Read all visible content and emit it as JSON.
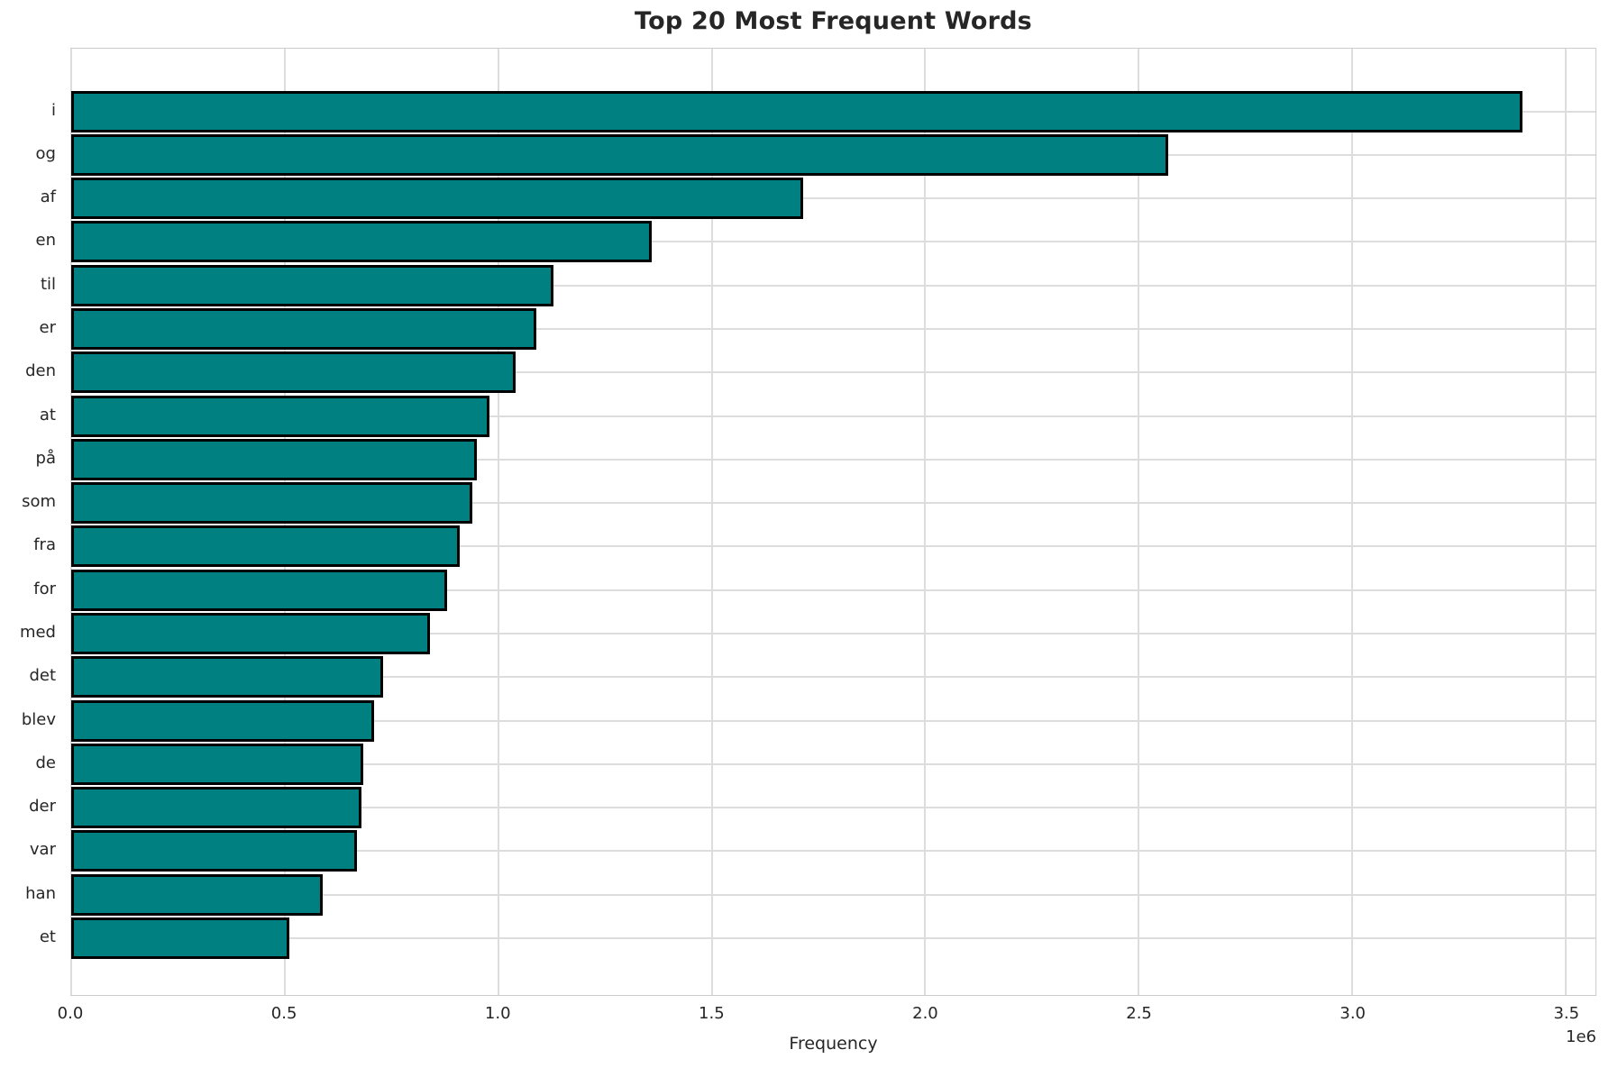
{
  "chart_data": {
    "type": "bar",
    "orientation": "horizontal",
    "title": "Top 20 Most Frequent Words",
    "xlabel": "Frequency",
    "ylabel": "",
    "categories": [
      "i",
      "og",
      "af",
      "en",
      "til",
      "er",
      "den",
      "at",
      "på",
      "som",
      "fra",
      "for",
      "med",
      "det",
      "blev",
      "de",
      "der",
      "var",
      "han",
      "et"
    ],
    "values": [
      3400000,
      2570000,
      1715000,
      1360000,
      1130000,
      1090000,
      1040000,
      980000,
      950000,
      940000,
      910000,
      880000,
      840000,
      730000,
      710000,
      685000,
      680000,
      670000,
      590000,
      510000
    ],
    "xlim": [
      0,
      3570000
    ],
    "xticks": [
      0,
      500000,
      1000000,
      1500000,
      2000000,
      2500000,
      3000000,
      3500000
    ],
    "xtick_labels": [
      "0.0",
      "0.5",
      "1.0",
      "1.5",
      "2.0",
      "2.5",
      "3.0",
      "3.5"
    ],
    "offset_label": "1e6",
    "legend": "none",
    "grid": "both",
    "colors": {
      "bar_fill": "#008080",
      "bar_edge": "#000000",
      "grid": "#dddddd",
      "spine": "#cccccc",
      "text": "#262626",
      "background": "#ffffff"
    }
  }
}
